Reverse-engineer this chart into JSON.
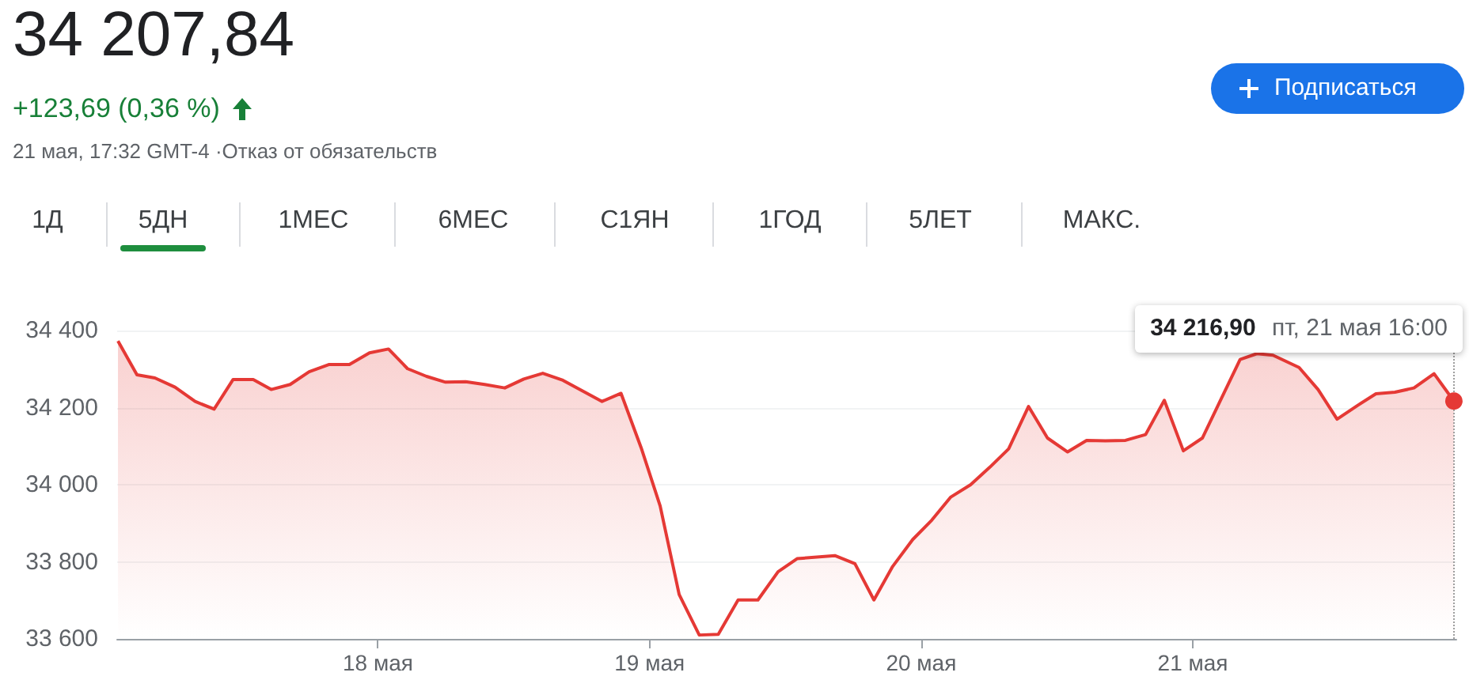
{
  "chart_data": {
    "type": "area",
    "title": "34 207,84",
    "subtitle": "+123,69 (0,36 %)",
    "annotations": [
      "21 мая, 17:32 GMT-4 ·Отказ от обязательств",
      "1Д",
      "5ДН",
      "1МЕС",
      "6МЕС",
      "С1ЯН",
      "1ГОД",
      "5ЛЕТ",
      "МАКС.",
      "Подписаться",
      {
        "text": "34 216,90 пт, 21 мая 16:00",
        "x": 21.961,
        "y": 34216.9
      }
    ],
    "x": [
      17.043,
      17.113,
      17.179,
      17.253,
      17.327,
      17.397,
      17.467,
      17.541,
      17.607,
      17.677,
      17.747,
      17.821,
      17.895,
      17.969,
      18.039,
      18.109,
      18.179,
      18.249,
      18.323,
      18.393,
      18.467,
      18.537,
      18.607,
      18.681,
      18.751,
      18.825,
      18.895,
      18.969,
      19.039,
      19.109,
      19.183,
      19.253,
      19.326,
      19.399,
      19.473,
      19.543,
      19.682,
      19.756,
      19.826,
      19.895,
      19.969,
      20.039,
      20.109,
      20.182,
      20.252,
      20.322,
      20.395,
      20.465,
      20.539,
      20.609,
      20.678,
      20.752,
      20.826,
      20.895,
      20.965,
      21.035,
      21.089,
      21.174,
      21.236,
      21.295,
      21.391,
      21.461,
      21.531,
      21.605,
      21.674,
      21.744,
      21.814,
      21.888,
      21.961
    ],
    "series": [
      {
        "color": "#e53935",
        "values": [
          34373,
          34285,
          34277,
          34253,
          34216,
          34196,
          34273,
          34273,
          34247,
          34260,
          34293,
          34312,
          34312,
          34342,
          34352,
          34301,
          34281,
          34266,
          34267,
          34260,
          34251,
          34274,
          34289,
          34271,
          34244,
          34216,
          34237,
          34096,
          33945,
          33715,
          33610,
          33612,
          33701,
          33701,
          33774,
          33808,
          33816,
          33795,
          33701,
          33788,
          33858,
          33908,
          33968,
          34000,
          34045,
          34093,
          34203,
          34121,
          34085,
          34115,
          34114,
          34115,
          34130,
          34219,
          34088,
          34121,
          null,
          34325,
          34340,
          34336,
          34304,
          34247,
          34170,
          34205,
          34236,
          34240,
          34251,
          34288,
          34216.9
        ]
      }
    ],
    "xlim": [
      17.04,
      21.97
    ],
    "xticks": [
      {
        "value": 18,
        "label": "18 мая"
      },
      {
        "value": 19,
        "label": "19 мая"
      },
      {
        "value": 20,
        "label": "20 мая"
      },
      {
        "value": 21,
        "label": "21 мая"
      }
    ],
    "ylim": [
      33600,
      34400
    ],
    "yticks": [
      {
        "value": 33600,
        "label": "33 600"
      },
      {
        "value": 33800,
        "label": "33 800"
      },
      {
        "value": 34000,
        "label": "34 000"
      },
      {
        "value": 34200,
        "label": "34 200"
      },
      {
        "value": 34400,
        "label": "34 400"
      }
    ],
    "ref_lines": [
      {
        "axis": "x",
        "value": 21.961,
        "color": "#9e9e9e",
        "line_style": "dotted"
      }
    ],
    "grid": "y",
    "marker": "none",
    "line_style": "solid"
  }
}
